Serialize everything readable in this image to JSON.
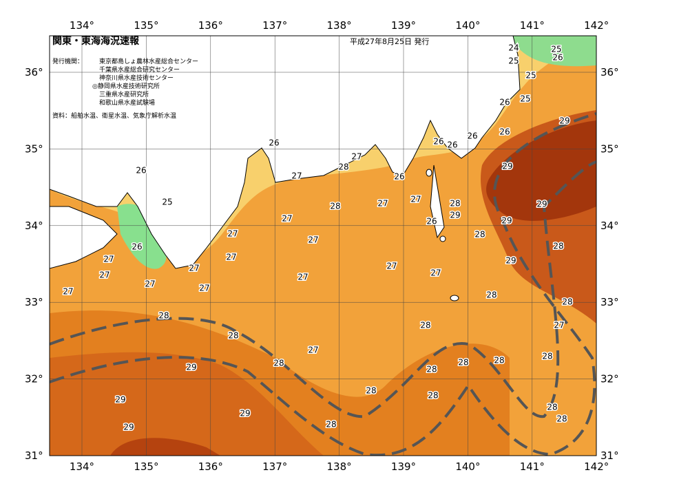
{
  "header": {
    "title": "関東・東海海況速報",
    "date": "平成27年8月25日 発行",
    "issuers_label": "発行機関：",
    "issuers": [
      "東京都島しょ農林水産総合センター",
      "千葉県水産総合研究センター",
      "神奈川県水産技術センター",
      "◎静岡県水産技術研究所",
      "三重県水産研究所",
      "和歌山県水産試験場"
    ],
    "source": "資料：船舶水温、衛星水温、気象庁解析水温"
  },
  "map": {
    "lon_labels": [
      "134°",
      "135°",
      "136°",
      "137°",
      "138°",
      "139°",
      "140°",
      "141°",
      "142°"
    ],
    "lat_labels": [
      "36°",
      "35°",
      "34°",
      "33°",
      "32°",
      "31°"
    ],
    "contour_labels": [
      24,
      25,
      25,
      26,
      25,
      26,
      25,
      29,
      26,
      26,
      26,
      26,
      26,
      27,
      28,
      26,
      27,
      29,
      26,
      25,
      27,
      27,
      28,
      29,
      28,
      29,
      27,
      26,
      29,
      27,
      27,
      28,
      26,
      28,
      27,
      27,
      29,
      27,
      27,
      27,
      27,
      27,
      27,
      27,
      27,
      28,
      28,
      28,
      27,
      28,
      28,
      27,
      28,
      28,
      28,
      29,
      28,
      28,
      28,
      28,
      29,
      28,
      29,
      28,
      28,
      29
    ]
  }
}
